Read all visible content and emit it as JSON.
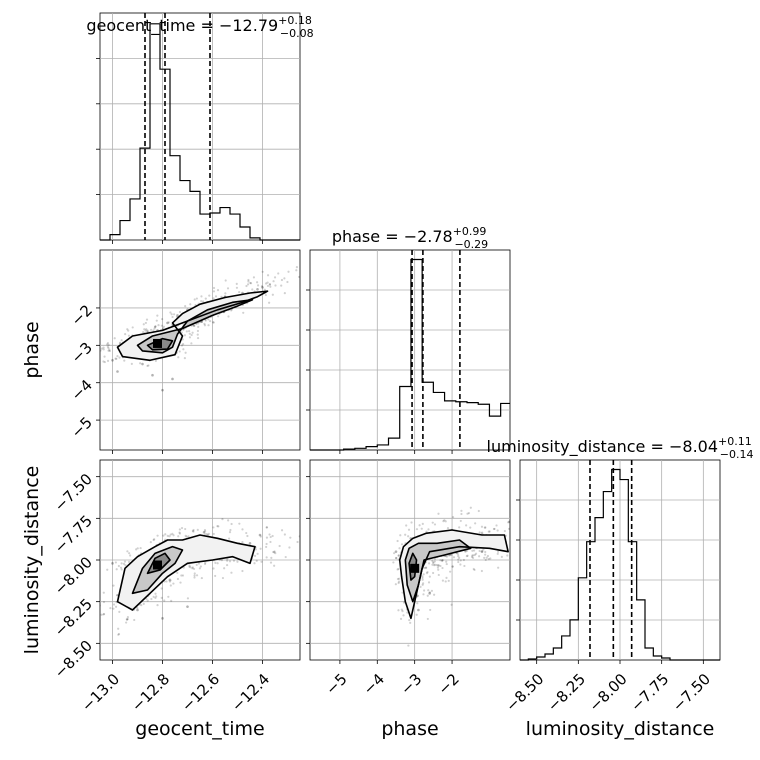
{
  "chart_data": {
    "type": "corner",
    "parameters": [
      "geocent_time",
      "phase",
      "luminosity_distance"
    ],
    "axis_labels": [
      "geocent_time",
      "phase",
      "luminosity_distance"
    ],
    "ranges": {
      "geocent_time": [
        -13.05,
        -12.25
      ],
      "phase": [
        -5.8,
        -0.45
      ],
      "luminosity_distance": [
        -8.6,
        -7.4
      ]
    },
    "ticks": {
      "geocent_time": {
        "values": [
          -13.0,
          -12.8,
          -12.6,
          -12.4
        ],
        "labels": [
          "−13.0",
          "−12.8",
          "−12.6",
          "−12.4"
        ]
      },
      "phase_x": {
        "values": [
          -5,
          -4,
          -3,
          -2
        ],
        "labels": [
          "−5",
          "−4",
          "−3",
          "−2"
        ]
      },
      "phase_y": {
        "values": [
          -2,
          -3,
          -4,
          -5
        ],
        "labels": [
          "−2",
          "−3",
          "−4",
          "−5"
        ]
      },
      "luminosity_distance": {
        "values": [
          -8.5,
          -8.25,
          -8.0,
          -7.75,
          -7.5
        ],
        "labels": [
          "−8.50",
          "−8.25",
          "−8.00",
          "−7.75",
          "−7.50"
        ]
      }
    },
    "titles": [
      {
        "param": "geocent_time",
        "prefix": "geocent_time = ",
        "median": "−12.79",
        "plus": "+0.18",
        "minus": "−0.08"
      },
      {
        "param": "phase",
        "prefix": "phase = ",
        "median": "−2.78",
        "plus": "+0.99",
        "minus": "−0.29"
      },
      {
        "param": "luminosity_distance",
        "prefix": "luminosity_distance = ",
        "median": "−8.04",
        "plus": "+0.11",
        "minus": "−0.14"
      }
    ],
    "quantile_lines": {
      "geocent_time": [
        -12.87,
        -12.79,
        -12.61
      ],
      "phase": [
        -3.07,
        -2.78,
        -1.79
      ],
      "luminosity_distance": [
        -8.18,
        -8.04,
        -7.93
      ]
    },
    "histograms": {
      "geocent_time": {
        "edges": [
          -13.05,
          -13.01,
          -12.97,
          -12.93,
          -12.89,
          -12.85,
          -12.81,
          -12.77,
          -12.73,
          -12.69,
          -12.65,
          -12.61,
          -12.57,
          -12.53,
          -12.49,
          -12.45,
          -12.41,
          -12.37,
          -12.33,
          -12.29,
          -12.25
        ],
        "counts": [
          0,
          5,
          18,
          38,
          85,
          200,
          158,
          78,
          55,
          45,
          24,
          25,
          30,
          24,
          12,
          2,
          0,
          0,
          0,
          0
        ]
      },
      "phase": {
        "edges": [
          -5.8,
          -5.5,
          -5.2,
          -4.9,
          -4.6,
          -4.3,
          -4.0,
          -3.7,
          -3.4,
          -3.1,
          -2.8,
          -2.5,
          -2.2,
          -1.9,
          -1.6,
          -1.3,
          -1.0,
          -0.7,
          -0.45
        ],
        "counts": [
          0,
          0,
          0,
          1,
          2,
          4,
          6,
          14,
          75,
          225,
          80,
          68,
          58,
          57,
          56,
          54,
          40,
          55
        ]
      },
      "luminosity_distance": {
        "edges": [
          -8.6,
          -8.55,
          -8.5,
          -8.45,
          -8.4,
          -8.35,
          -8.3,
          -8.25,
          -8.2,
          -8.15,
          -8.1,
          -8.05,
          -8.0,
          -7.95,
          -7.9,
          -7.85,
          -7.8,
          -7.75,
          -7.7,
          -7.65,
          -7.6,
          -7.55,
          -7.5,
          -7.45,
          -7.4
        ],
        "counts": [
          0,
          1,
          3,
          6,
          12,
          24,
          40,
          82,
          118,
          142,
          168,
          190,
          180,
          118,
          60,
          12,
          4,
          2,
          0,
          0,
          0,
          0,
          0,
          0
        ]
      }
    },
    "scatter_samples": {
      "phase_vs_geocent_time": {
        "x": [
          -12.9,
          -12.86,
          -12.82,
          -12.78,
          -12.74,
          -12.7,
          -12.62,
          -12.55,
          -12.48,
          -12.42,
          -12.4,
          -12.95,
          -13.0,
          -12.98,
          -12.92,
          -12.88,
          -12.84,
          -12.8,
          -12.76
        ],
        "y": [
          -2.9,
          -2.8,
          -2.6,
          -2.4,
          -2.2,
          -2.05,
          -1.85,
          -1.7,
          -1.6,
          -1.5,
          -1.45,
          -3.1,
          -3.4,
          -3.7,
          -3.3,
          -3.5,
          -3.8,
          -4.2,
          -3.9
        ]
      },
      "luminosity_distance_vs_geocent_time": {
        "x": [
          -13.0,
          -12.95,
          -12.9,
          -12.85,
          -12.8,
          -12.76,
          -12.7,
          -12.65,
          -12.6,
          -12.55,
          -12.5,
          -12.45,
          -12.41,
          -12.9,
          -12.8,
          -12.7
        ],
        "y": [
          -8.02,
          -8.15,
          -8.1,
          -8.05,
          -8.0,
          -7.95,
          -7.9,
          -7.93,
          -7.9,
          -7.95,
          -7.98,
          -7.9,
          -7.85,
          -8.3,
          -8.35,
          -8.28
        ]
      },
      "luminosity_distance_vs_phase": {
        "x": [
          -3.5,
          -3.3,
          -3.1,
          -3.0,
          -2.9,
          -2.7,
          -2.4,
          -2.0,
          -1.6,
          -1.2,
          -0.8,
          -3.2,
          -2.9,
          -2.6
        ],
        "y": [
          -7.95,
          -8.05,
          -8.1,
          -8.0,
          -7.92,
          -7.95,
          -7.9,
          -7.88,
          -7.92,
          -7.95,
          -7.9,
          -8.25,
          -8.3,
          -8.2
        ]
      }
    },
    "density_peaks": {
      "phase_vs_geocent_time": {
        "x": -12.82,
        "y": -2.95
      },
      "luminosity_distance_vs_geocent_time": {
        "x": -12.82,
        "y": -8.03
      },
      "luminosity_distance_vs_phase": {
        "x": -3.0,
        "y": -8.05
      }
    },
    "contours": {
      "phase_vs_geocent_time": [
        [
          [
            -12.98,
            -3.05
          ],
          [
            -12.92,
            -2.75
          ],
          [
            -12.8,
            -2.6
          ],
          [
            -12.7,
            -2.35
          ],
          [
            -12.58,
            -2.05
          ],
          [
            -12.48,
            -1.85
          ],
          [
            -12.42,
            -1.7
          ],
          [
            -12.38,
            -1.55
          ],
          [
            -12.45,
            -1.6
          ],
          [
            -12.55,
            -1.72
          ],
          [
            -12.65,
            -1.9
          ],
          [
            -12.72,
            -2.15
          ],
          [
            -12.76,
            -2.4
          ],
          [
            -12.72,
            -2.75
          ],
          [
            -12.75,
            -3.25
          ],
          [
            -12.85,
            -3.4
          ],
          [
            -12.96,
            -3.3
          ],
          [
            -12.98,
            -3.05
          ]
        ],
        [
          [
            -12.9,
            -3.0
          ],
          [
            -12.84,
            -2.75
          ],
          [
            -12.72,
            -2.55
          ],
          [
            -12.6,
            -2.2
          ],
          [
            -12.5,
            -1.95
          ],
          [
            -12.44,
            -1.78
          ],
          [
            -12.52,
            -1.85
          ],
          [
            -12.62,
            -2.05
          ],
          [
            -12.7,
            -2.35
          ],
          [
            -12.74,
            -2.7
          ],
          [
            -12.76,
            -3.05
          ],
          [
            -12.8,
            -3.2
          ],
          [
            -12.88,
            -3.15
          ],
          [
            -12.9,
            -3.0
          ]
        ],
        [
          [
            -12.86,
            -3.0
          ],
          [
            -12.8,
            -2.82
          ],
          [
            -12.76,
            -2.88
          ],
          [
            -12.78,
            -3.1
          ],
          [
            -12.84,
            -3.12
          ],
          [
            -12.86,
            -3.0
          ]
        ]
      ],
      "luminosity_distance_vs_geocent_time": [
        [
          [
            -12.98,
            -8.25
          ],
          [
            -12.95,
            -8.05
          ],
          [
            -12.9,
            -7.98
          ],
          [
            -12.83,
            -7.92
          ],
          [
            -12.78,
            -7.88
          ],
          [
            -12.72,
            -7.88
          ],
          [
            -12.65,
            -7.85
          ],
          [
            -12.58,
            -7.87
          ],
          [
            -12.5,
            -7.9
          ],
          [
            -12.43,
            -7.92
          ],
          [
            -12.45,
            -8.02
          ],
          [
            -12.52,
            -7.98
          ],
          [
            -12.6,
            -8.0
          ],
          [
            -12.7,
            -8.02
          ],
          [
            -12.78,
            -8.1
          ],
          [
            -12.85,
            -8.2
          ],
          [
            -12.92,
            -8.3
          ],
          [
            -12.98,
            -8.25
          ]
        ],
        [
          [
            -12.92,
            -8.2
          ],
          [
            -12.88,
            -8.05
          ],
          [
            -12.83,
            -7.96
          ],
          [
            -12.76,
            -7.92
          ],
          [
            -12.72,
            -7.94
          ],
          [
            -12.75,
            -8.02
          ],
          [
            -12.8,
            -8.08
          ],
          [
            -12.86,
            -8.18
          ],
          [
            -12.92,
            -8.2
          ]
        ],
        [
          [
            -12.86,
            -8.08
          ],
          [
            -12.83,
            -7.99
          ],
          [
            -12.79,
            -7.96
          ],
          [
            -12.77,
            -8.0
          ],
          [
            -12.81,
            -8.06
          ],
          [
            -12.86,
            -8.08
          ]
        ]
      ],
      "luminosity_distance_vs_phase": [
        [
          [
            -3.4,
            -8.0
          ],
          [
            -3.3,
            -7.92
          ],
          [
            -3.05,
            -7.87
          ],
          [
            -2.7,
            -7.84
          ],
          [
            -2.0,
            -7.82
          ],
          [
            -1.2,
            -7.85
          ],
          [
            -0.6,
            -7.85
          ],
          [
            -0.5,
            -7.95
          ],
          [
            -1.0,
            -7.93
          ],
          [
            -1.8,
            -7.92
          ],
          [
            -2.6,
            -7.95
          ],
          [
            -2.8,
            -8.05
          ],
          [
            -2.95,
            -8.2
          ],
          [
            -3.1,
            -8.35
          ],
          [
            -3.25,
            -8.25
          ],
          [
            -3.35,
            -8.1
          ],
          [
            -3.4,
            -8.0
          ]
        ],
        [
          [
            -3.25,
            -8.0
          ],
          [
            -3.15,
            -7.93
          ],
          [
            -2.9,
            -7.9
          ],
          [
            -2.4,
            -7.9
          ],
          [
            -1.8,
            -7.88
          ],
          [
            -1.5,
            -7.93
          ],
          [
            -2.2,
            -7.97
          ],
          [
            -2.75,
            -8.0
          ],
          [
            -2.9,
            -8.15
          ],
          [
            -3.05,
            -8.25
          ],
          [
            -3.2,
            -8.15
          ],
          [
            -3.25,
            -8.0
          ]
        ],
        [
          [
            -3.15,
            -8.02
          ],
          [
            -3.05,
            -7.96
          ],
          [
            -2.95,
            -8.0
          ],
          [
            -3.0,
            -8.1
          ],
          [
            -3.1,
            -8.12
          ],
          [
            -3.15,
            -8.02
          ]
        ]
      ]
    },
    "grid": true
  }
}
